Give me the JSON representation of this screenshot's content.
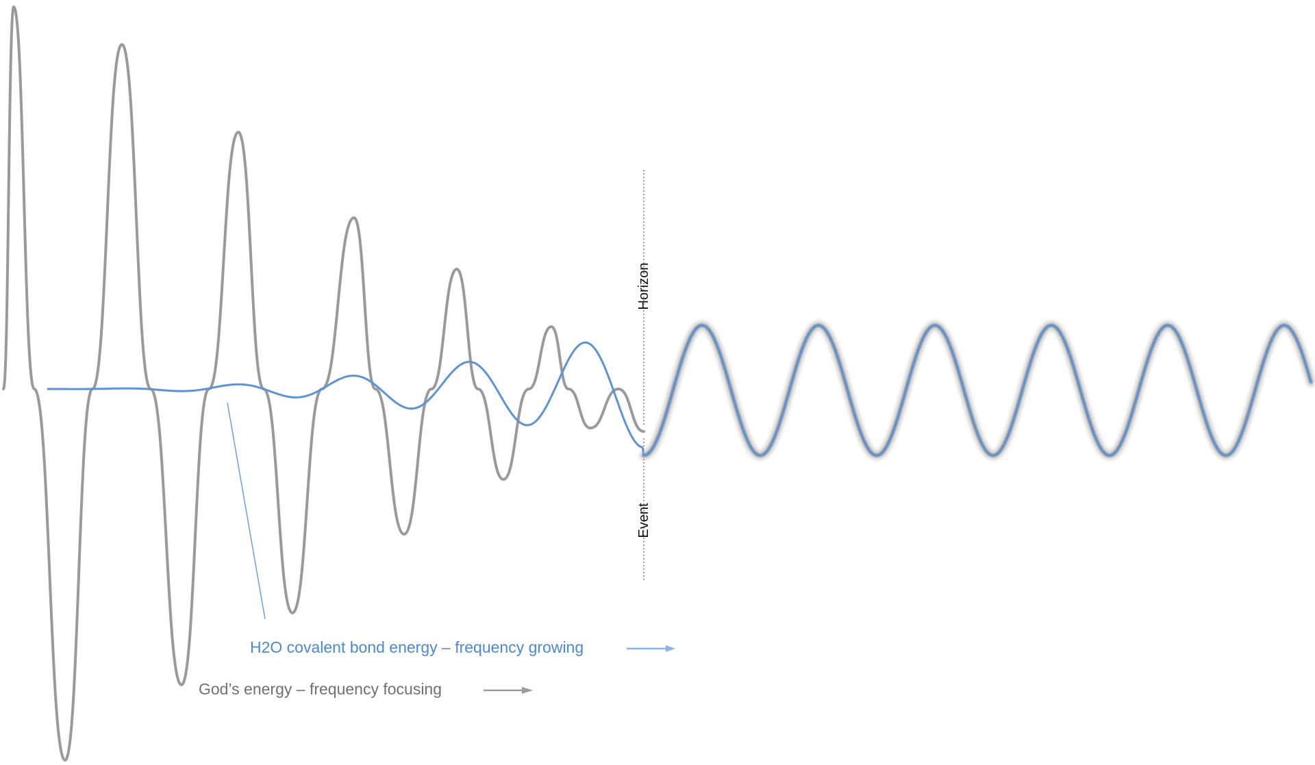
{
  "labels": {
    "horizon": "Horizon",
    "event": "Event",
    "h2o": "H2O covalent bond energy – frequency growing",
    "god": "God’s energy – frequency focusing"
  },
  "colors": {
    "gray_wave": "#9a9a9a",
    "blue_wave": "#5b93d6",
    "gray_text": "#707070",
    "blue_text": "#4a88d8",
    "divider": "#a0a0a0"
  }
}
